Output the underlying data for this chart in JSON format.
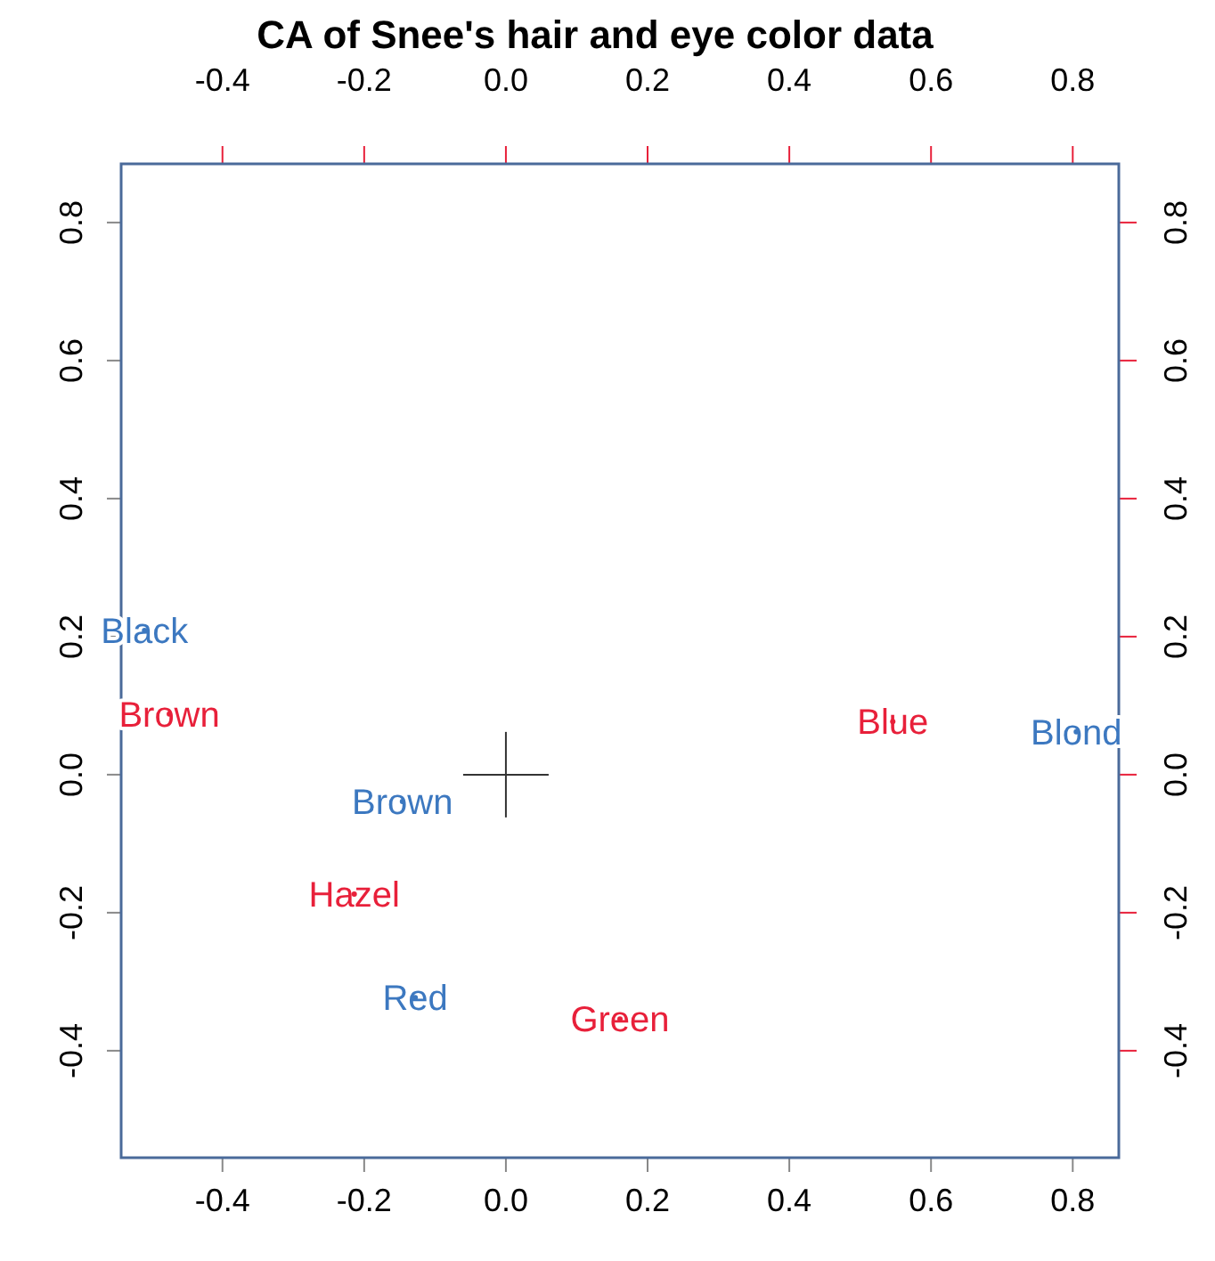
{
  "chart_data": {
    "type": "scatter",
    "title": "CA of Snee's hair and eye color data",
    "marker": "circle",
    "grid": false,
    "xlim": [
      -0.543,
      0.865
    ],
    "ylim": [
      -0.555,
      0.885
    ],
    "xticks": [
      -0.4,
      -0.2,
      {
        "value": 0,
        "label": "0.0"
      },
      0.2,
      0.4,
      0.6,
      0.8
    ],
    "yticks": [
      -0.4,
      -0.2,
      {
        "value": 0,
        "label": "0.0"
      },
      0.2,
      0.4,
      0.6,
      0.8
    ],
    "x2lim": [
      -0.543,
      0.865
    ],
    "y2lim": [
      -0.555,
      0.885
    ],
    "x2ticks": [
      -0.4,
      -0.2,
      {
        "value": 0,
        "label": "0.0"
      },
      0.2,
      0.4,
      0.6,
      0.8
    ],
    "y2ticks": [
      -0.4,
      -0.2,
      {
        "value": 0,
        "label": "0.0"
      },
      0.2,
      0.4,
      0.6,
      0.8
    ],
    "series": [
      {
        "color": "#3c78c0",
        "x": [
          -0.51,
          -0.146,
          -0.128,
          0.805
        ],
        "values": [
          0.209,
          -0.039,
          -0.323,
          0.062
        ],
        "value_labels": [
          "Black",
          "Brown",
          "Red",
          "Blond"
        ]
      },
      {
        "color": "#e8203a",
        "axis": "y2",
        "x": [
          -0.475,
          0.546,
          -0.214,
          0.161
        ],
        "values": [
          0.088,
          0.077,
          -0.173,
          -0.354
        ],
        "value_labels": [
          "Brown",
          "Blue",
          "Hazel",
          "Green"
        ]
      }
    ]
  }
}
